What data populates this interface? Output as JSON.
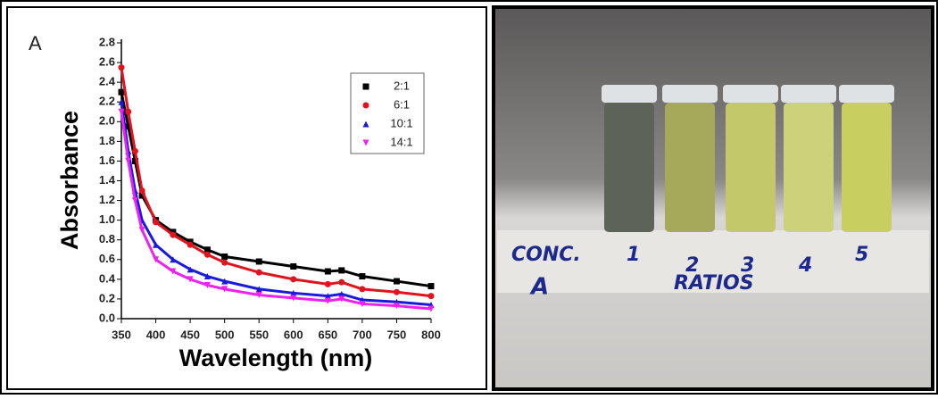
{
  "chart_data": {
    "type": "line",
    "panel_label": "A",
    "x_label": "Wavelength (nm)",
    "y_label": "Absorbance",
    "x": [
      350,
      360,
      370,
      380,
      400,
      425,
      450,
      475,
      500,
      550,
      600,
      650,
      670,
      700,
      750,
      800
    ],
    "series": [
      {
        "name": "2:1",
        "color": "#000000",
        "marker": "square",
        "values": [
          2.3,
          1.95,
          1.6,
          1.25,
          1.0,
          0.88,
          0.78,
          0.7,
          0.63,
          0.58,
          0.53,
          0.48,
          0.49,
          0.43,
          0.38,
          0.33
        ]
      },
      {
        "name": "6:1",
        "color": "#e0141e",
        "marker": "circle",
        "values": [
          2.55,
          2.1,
          1.7,
          1.3,
          0.98,
          0.85,
          0.75,
          0.65,
          0.57,
          0.47,
          0.4,
          0.35,
          0.37,
          0.3,
          0.27,
          0.23
        ]
      },
      {
        "name": "10:1",
        "color": "#1a1adc",
        "marker": "triangle",
        "values": [
          2.2,
          1.7,
          1.3,
          1.0,
          0.75,
          0.6,
          0.5,
          0.43,
          0.38,
          0.3,
          0.26,
          0.23,
          0.25,
          0.19,
          0.17,
          0.14
        ]
      },
      {
        "name": "14:1",
        "color": "#ee22ee",
        "marker": "triangle-down",
        "values": [
          2.1,
          1.6,
          1.2,
          0.9,
          0.6,
          0.48,
          0.4,
          0.34,
          0.3,
          0.24,
          0.21,
          0.18,
          0.2,
          0.15,
          0.13,
          0.1
        ]
      }
    ],
    "xlim": [
      350,
      800
    ],
    "xticks": [
      350,
      400,
      450,
      500,
      550,
      600,
      650,
      700,
      750,
      800
    ],
    "ylim": [
      0,
      2.8
    ],
    "yticks": [
      {
        "value": 0,
        "label": "0.0"
      },
      0.2,
      0.4,
      0.6,
      0.8,
      {
        "value": 1,
        "label": "1.0"
      },
      1.2,
      1.4,
      1.6,
      1.8,
      {
        "value": 2,
        "label": "2.0"
      },
      2.2,
      2.4,
      2.6,
      2.8
    ],
    "legend": "upper right"
  },
  "photo": {
    "labels": [
      "CONC.",
      "1",
      "2",
      "3",
      "4",
      "5",
      "A",
      "RATIOS"
    ]
  }
}
